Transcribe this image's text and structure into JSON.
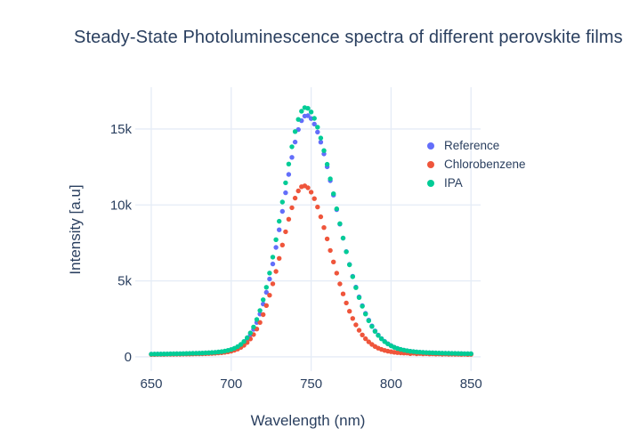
{
  "chart_data": {
    "type": "scatter",
    "mode": "markers",
    "title": "Steady-State Photoluminescence spectra of different perovskite films",
    "xlabel": "Wavelength (nm)",
    "ylabel": "Intensity [a.u]",
    "x_ticks": [
      650,
      700,
      750,
      800,
      850
    ],
    "y_ticks": [
      "0",
      "5k",
      "10k",
      "15k"
    ],
    "y_tick_values": [
      0,
      5000,
      10000,
      15000
    ],
    "xlim": [
      640,
      856
    ],
    "ylim": [
      -940,
      17750
    ],
    "grid": true,
    "legend_position": "inside-right",
    "x_start": 650,
    "x_step": 2,
    "marker_size_px": 2.7,
    "font_color": "#2a3f5f",
    "grid_color": "#e5ecf6",
    "background_color": "#ffffff",
    "series": [
      {
        "name": "Reference",
        "color": "#636efa",
        "values": [
          177,
          179,
          182,
          184,
          187,
          190,
          194,
          197,
          200,
          204,
          209,
          214,
          219,
          224,
          230,
          237,
          244,
          253,
          263,
          275,
          290,
          308,
          332,
          363,
          405,
          459,
          533,
          631,
          762,
          936,
          1163,
          1451,
          1815,
          2267,
          2817,
          3475,
          4244,
          5126,
          6115,
          7201,
          8362,
          9575,
          10804,
          12007,
          13135,
          14138,
          14959,
          15547,
          15852,
          15877,
          15690,
          15324,
          14799,
          14137,
          13363,
          12510,
          11596,
          10648,
          9690,
          8738,
          7813,
          6926,
          6087,
          5307,
          4593,
          3949,
          3371,
          2861,
          2417,
          2035,
          1710,
          1435,
          1206,
          1019,
          864,
          739,
          638,
          556,
          492,
          442,
          401,
          368,
          342,
          321,
          304,
          289,
          278,
          268,
          260,
          253,
          246,
          240,
          234,
          229,
          224,
          221,
          216,
          213,
          209,
          205,
          201
        ]
      },
      {
        "name": "Chlorobenzene",
        "color": "#ef553b",
        "values": [
          155,
          157,
          159,
          161,
          163,
          165,
          167,
          170,
          173,
          175,
          179,
          182,
          185,
          190,
          194,
          199,
          204,
          211,
          219,
          228,
          239,
          253,
          271,
          297,
          330,
          374,
          434,
          515,
          622,
          762,
          945,
          1179,
          1469,
          1829,
          2264,
          2779,
          3378,
          4056,
          4808,
          5622,
          6482,
          7360,
          8233,
          9063,
          9817,
          10451,
          10924,
          11202,
          11259,
          11132,
          10844,
          10412,
          9862,
          9221,
          8513,
          7766,
          7005,
          6246,
          5508,
          4804,
          4148,
          3546,
          3005,
          2526,
          2106,
          1748,
          1445,
          1192,
          986,
          816,
          681,
          574,
          490,
          424,
          374,
          335,
          303,
          281,
          262,
          248,
          252,
          216,
          238,
          200,
          221,
          195,
          210,
          188,
          196,
          182,
          188,
          176,
          183,
          170,
          175,
          166,
          170,
          162,
          166,
          158,
          160
        ]
      },
      {
        "name": "IPA",
        "color": "#00cc96",
        "values": [
          179,
          182,
          184,
          187,
          190,
          193,
          197,
          200,
          204,
          208,
          213,
          218,
          223,
          229,
          235,
          242,
          250,
          259,
          270,
          283,
          299,
          319,
          345,
          379,
          425,
          485,
          567,
          674,
          819,
          1010,
          1258,
          1572,
          1968,
          2457,
          3051,
          3758,
          4580,
          5519,
          6567,
          7711,
          8927,
          10190,
          11460,
          12691,
          13833,
          14831,
          15628,
          16171,
          16410,
          16364,
          16122,
          15700,
          15118,
          14402,
          13576,
          12678,
          11719,
          10736,
          9745,
          8767,
          7820,
          6915,
          6063,
          5274,
          4555,
          3908,
          3329,
          2821,
          2379,
          2001,
          1680,
          1409,
          1184,
          1002,
          850,
          728,
          630,
          550,
          488,
          440,
          400,
          368,
          343,
          322,
          306,
          291,
          280,
          270,
          262,
          255,
          249,
          242,
          236,
          231,
          226,
          223,
          218,
          215,
          211,
          206,
          203
        ]
      }
    ]
  }
}
